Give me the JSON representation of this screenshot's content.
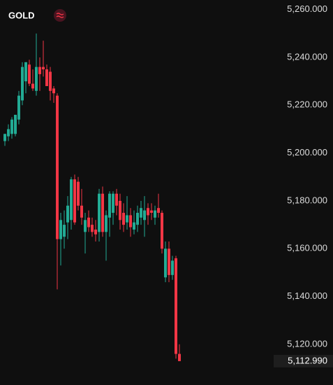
{
  "chart_data": {
    "type": "candlestick",
    "title": "GOLD",
    "up_color": "#22ab94",
    "down_color": "#f23645",
    "ylim": [
      5103,
      5264
    ],
    "yticks": [
      {
        "value": 5260,
        "label": "5,260.000"
      },
      {
        "value": 5240,
        "label": "5,240.000"
      },
      {
        "value": 5220,
        "label": "5,220.000"
      },
      {
        "value": 5200,
        "label": "5,200.000"
      },
      {
        "value": 5180,
        "label": "5,180.000"
      },
      {
        "value": 5160,
        "label": "5,160.000"
      },
      {
        "value": 5140,
        "label": "5,140.000"
      },
      {
        "value": 5120,
        "label": "5,120.000"
      }
    ],
    "last_price": {
      "value": 5112.99,
      "label": "5,112.990"
    },
    "open": [
      5205,
      5207,
      5208,
      5208,
      5214,
      5222,
      5230,
      5237,
      5229,
      5226,
      5236,
      5236,
      5235,
      5234,
      5227,
      5224,
      5164,
      5165,
      5171,
      5172,
      5189,
      5188,
      5178,
      5167,
      5173,
      5170,
      5168,
      5167,
      5183,
      5167,
      5173,
      5175,
      5183,
      5180,
      5175,
      5171,
      5174,
      5168,
      5170,
      5173,
      5172,
      5177,
      5176,
      5173,
      5177,
      5175,
      5148,
      5160,
      5149,
      5156,
      5116
    ],
    "high": [
      5208,
      5212,
      5215,
      5216,
      5226,
      5238,
      5238,
      5239,
      5235,
      5250,
      5240,
      5247,
      5237,
      5236,
      5228,
      5225,
      5175,
      5176,
      5182,
      5190,
      5191,
      5190,
      5185,
      5175,
      5176,
      5173,
      5172,
      5185,
      5186,
      5176,
      5184,
      5184,
      5185,
      5183,
      5179,
      5182,
      5177,
      5176,
      5178,
      5180,
      5182,
      5179,
      5179,
      5178,
      5183,
      5176,
      5163,
      5163,
      5157,
      5157,
      5120
    ],
    "low": [
      5203,
      5205,
      5206,
      5207,
      5212,
      5220,
      5225,
      5228,
      5226,
      5224,
      5226,
      5232,
      5228,
      5222,
      5221,
      5143,
      5153,
      5160,
      5164,
      5168,
      5170,
      5176,
      5170,
      5158,
      5167,
      5165,
      5163,
      5163,
      5165,
      5155,
      5165,
      5170,
      5174,
      5168,
      5167,
      5168,
      5165,
      5166,
      5167,
      5170,
      5165,
      5170,
      5172,
      5170,
      5173,
      5158,
      5146,
      5146,
      5147,
      5114,
      5113
    ],
    "close": [
      5208,
      5210,
      5214,
      5216,
      5224,
      5236,
      5238,
      5229,
      5227,
      5236,
      5233,
      5235,
      5228,
      5226,
      5225,
      5164,
      5172,
      5170,
      5178,
      5189,
      5171,
      5178,
      5173,
      5172,
      5169,
      5167,
      5166,
      5183,
      5167,
      5174,
      5183,
      5183,
      5178,
      5172,
      5170,
      5174,
      5169,
      5171,
      5175,
      5177,
      5176,
      5174,
      5175,
      5176,
      5175,
      5160,
      5160,
      5149,
      5155,
      5116,
      5112.99
    ]
  }
}
